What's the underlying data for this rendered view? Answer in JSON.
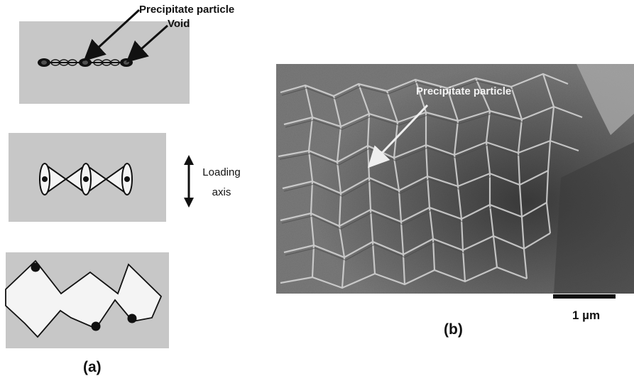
{
  "panel_a": {
    "label": "(a)",
    "precipitate_label": "Precipitate particle",
    "void_label": "Void",
    "loading_label_line1": "Loading",
    "loading_label_line2": "axis"
  },
  "panel_b": {
    "label": "(b)",
    "precipitate_label": "Precipitate particle",
    "scale_bar_label": "1 µm"
  },
  "colors": {
    "panel_background": "#c7c7c7",
    "void_fill": "#f4f4f4",
    "particle_fill": "#111111",
    "micrograph_base": "#7a7a7a"
  }
}
